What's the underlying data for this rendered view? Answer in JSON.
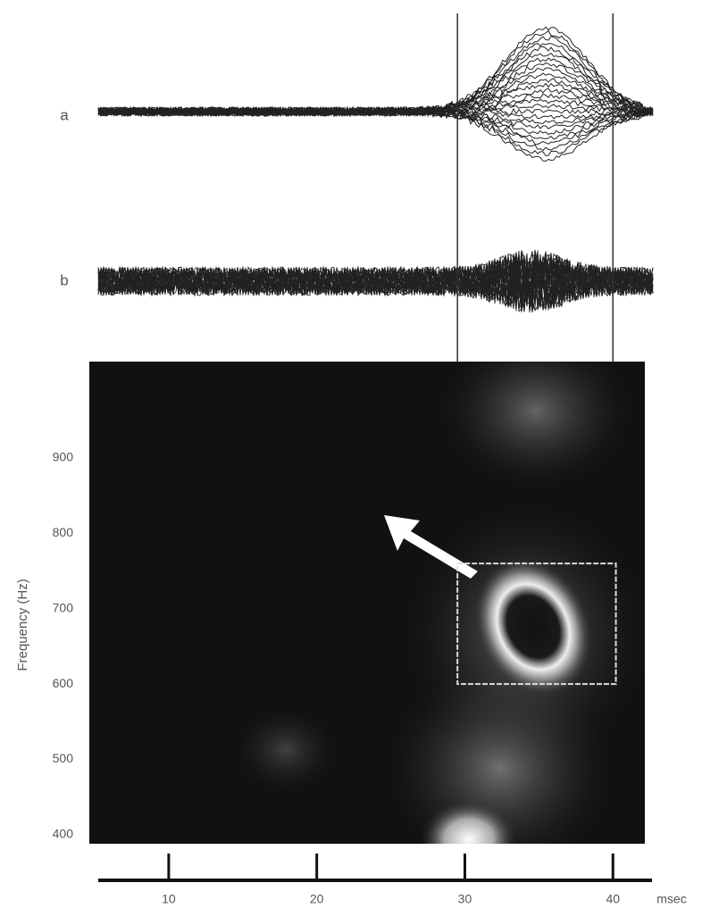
{
  "chart_data": {
    "type": "spectrogram",
    "panel_labels": [
      "a",
      "b"
    ],
    "ylabel": "Frequency  (Hz)",
    "ylim": [
      388,
      1028
    ],
    "yticks": [
      400,
      500,
      600,
      700,
      800,
      900
    ],
    "xlim": [
      5,
      43
    ],
    "xticks": [
      10,
      20,
      30,
      40
    ],
    "xlabel": "msec",
    "cursor_lines": [
      29.5,
      40
    ],
    "box": {
      "x": [
        29.5,
        40.2
      ],
      "y": [
        600,
        760
      ]
    }
  }
}
